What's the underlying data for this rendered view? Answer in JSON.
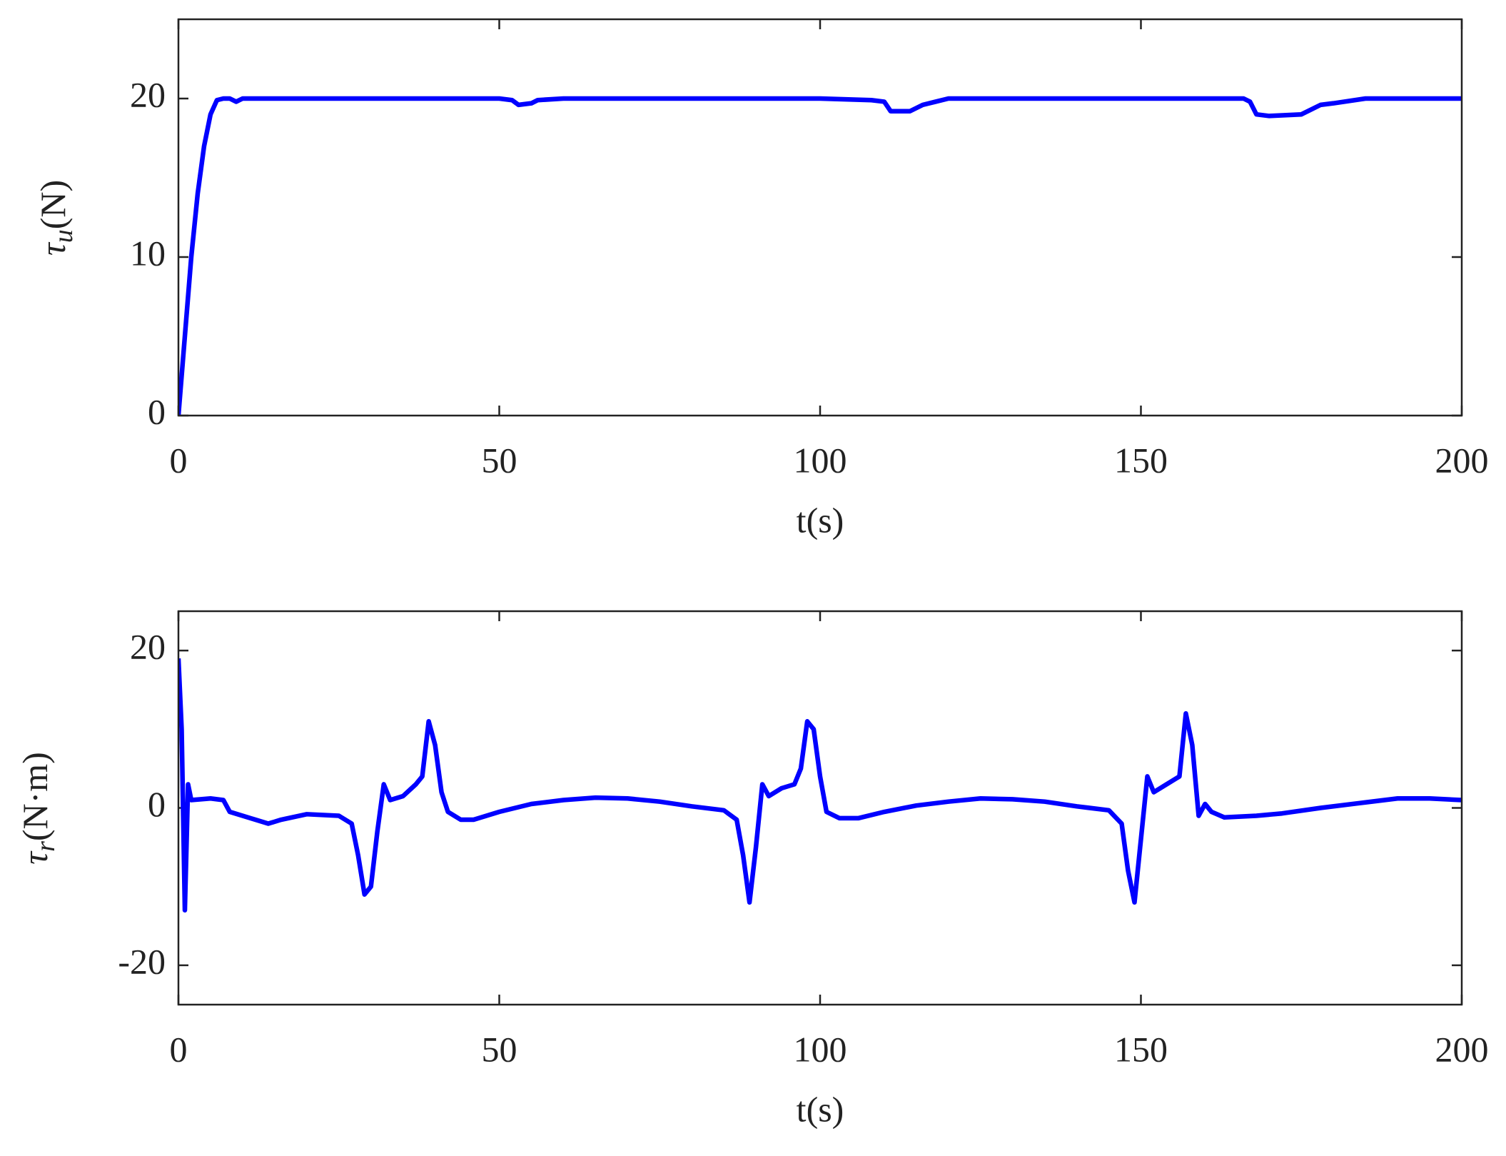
{
  "chart_data": [
    {
      "type": "line",
      "xlabel": "t(s)",
      "ylabel": [
        "τ",
        "u",
        "(N)"
      ],
      "xlim": [
        0,
        200
      ],
      "xticks": [
        0,
        50,
        100,
        150,
        200
      ],
      "ylim": [
        0,
        25
      ],
      "yticks": [
        0,
        10,
        20
      ],
      "x": [
        0,
        1,
        2,
        3,
        4,
        5,
        6,
        7,
        8,
        9,
        10,
        50,
        52,
        53,
        55,
        56,
        60,
        100,
        108,
        110,
        111,
        114,
        116,
        118,
        120,
        160,
        166,
        167,
        168,
        170,
        175,
        178,
        180,
        185,
        200
      ],
      "series": [
        {
          "color": "#0000ff",
          "values": [
            0,
            5,
            10,
            14,
            17,
            19,
            19.9,
            20,
            20,
            19.8,
            20,
            20,
            19.9,
            19.6,
            19.7,
            19.9,
            20,
            20,
            19.9,
            19.8,
            19.2,
            19.2,
            19.6,
            19.8,
            20,
            20,
            20,
            19.8,
            19,
            18.9,
            19,
            19.6,
            19.7,
            20,
            20
          ]
        }
      ]
    },
    {
      "type": "line",
      "xlabel": "t(s)",
      "ylabel": [
        "τ",
        "r",
        "(N·m)"
      ],
      "xlim": [
        0,
        200
      ],
      "xticks": [
        0,
        50,
        100,
        150,
        200
      ],
      "ylim": [
        -25,
        25
      ],
      "yticks": [
        -20,
        0,
        20
      ],
      "x": [
        0,
        0.5,
        1,
        1.5,
        2,
        5,
        7,
        8,
        12,
        14,
        16,
        20,
        25,
        27,
        28,
        29,
        30,
        31,
        32,
        33,
        35,
        37,
        38,
        39,
        40,
        41,
        42,
        44,
        46,
        50,
        55,
        60,
        65,
        70,
        75,
        80,
        85,
        87,
        88,
        89,
        90,
        91,
        92,
        94,
        96,
        97,
        98,
        99,
        100,
        101,
        103,
        106,
        110,
        115,
        120,
        125,
        130,
        135,
        140,
        145,
        147,
        148,
        149,
        150,
        151,
        152,
        154,
        156,
        157,
        158,
        159,
        160,
        161,
        163,
        168,
        172,
        178,
        185,
        190,
        195,
        200
      ],
      "series": [
        {
          "color": "#0000ff",
          "values": [
            19,
            10,
            -13,
            3,
            1,
            1.2,
            1,
            -0.5,
            -1.5,
            -2,
            -1.5,
            -0.8,
            -1,
            -2,
            -6,
            -11,
            -10,
            -3,
            3,
            1,
            1.5,
            3,
            4,
            11,
            8,
            2,
            -0.5,
            -1.5,
            -1.5,
            -0.5,
            0.5,
            1,
            1.3,
            1.2,
            0.8,
            0.2,
            -0.3,
            -1.5,
            -6,
            -12,
            -5,
            3,
            1.5,
            2.5,
            3,
            5,
            11,
            10,
            4,
            -0.5,
            -1.3,
            -1.3,
            -0.5,
            0.3,
            0.8,
            1.2,
            1.1,
            0.8,
            0.2,
            -0.3,
            -2,
            -8,
            -12,
            -4,
            4,
            2,
            3,
            4,
            12,
            8,
            -1,
            0.5,
            -0.5,
            -1.2,
            -1,
            -0.7,
            0,
            0.7,
            1.2,
            1.2,
            1
          ]
        }
      ]
    }
  ]
}
